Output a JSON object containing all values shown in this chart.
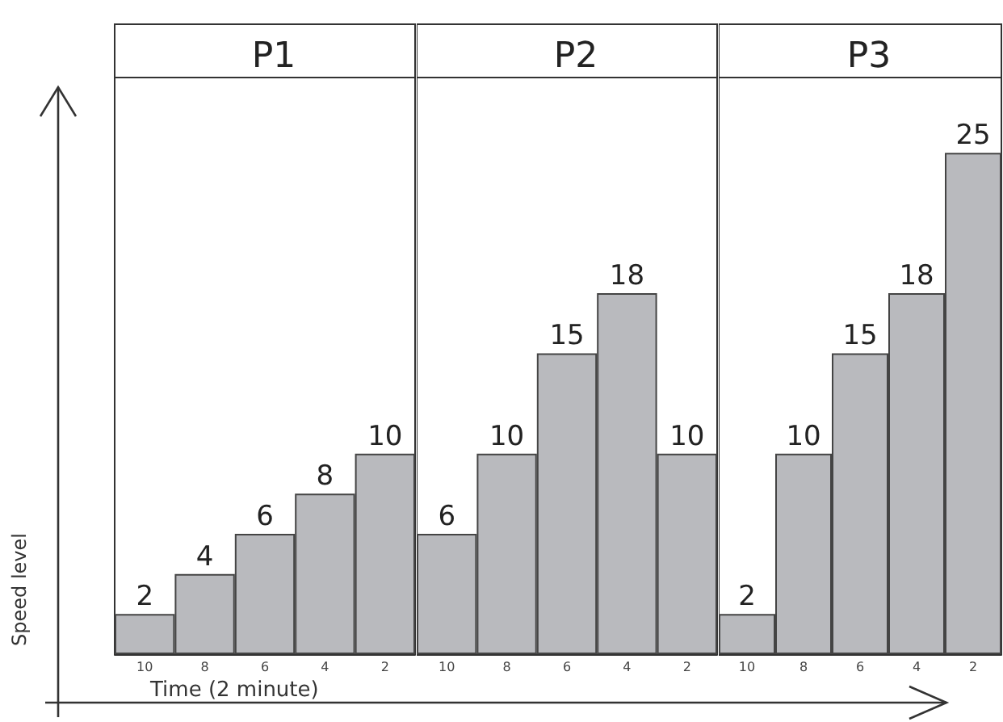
{
  "chart_data": [
    {
      "type": "bar",
      "title": "P1",
      "ylabel": "Speed level",
      "xlabel": "Time (2 minute)",
      "categories": [
        "10",
        "8",
        "6",
        "4",
        "2"
      ],
      "values": [
        2,
        4,
        6,
        8,
        10
      ],
      "color": "#b9babe",
      "data_labels": true
    },
    {
      "type": "bar",
      "title": "P2",
      "categories": [
        "10",
        "8",
        "6",
        "4",
        "2"
      ],
      "values": [
        6,
        10,
        15,
        18,
        10
      ],
      "color": "#b9babe",
      "data_labels": true
    },
    {
      "type": "bar",
      "title": "P3",
      "categories": [
        "10",
        "8",
        "6",
        "4",
        "2"
      ],
      "values": [
        2,
        10,
        15,
        18,
        25
      ],
      "color": "#b9babe",
      "data_labels": true
    }
  ]
}
